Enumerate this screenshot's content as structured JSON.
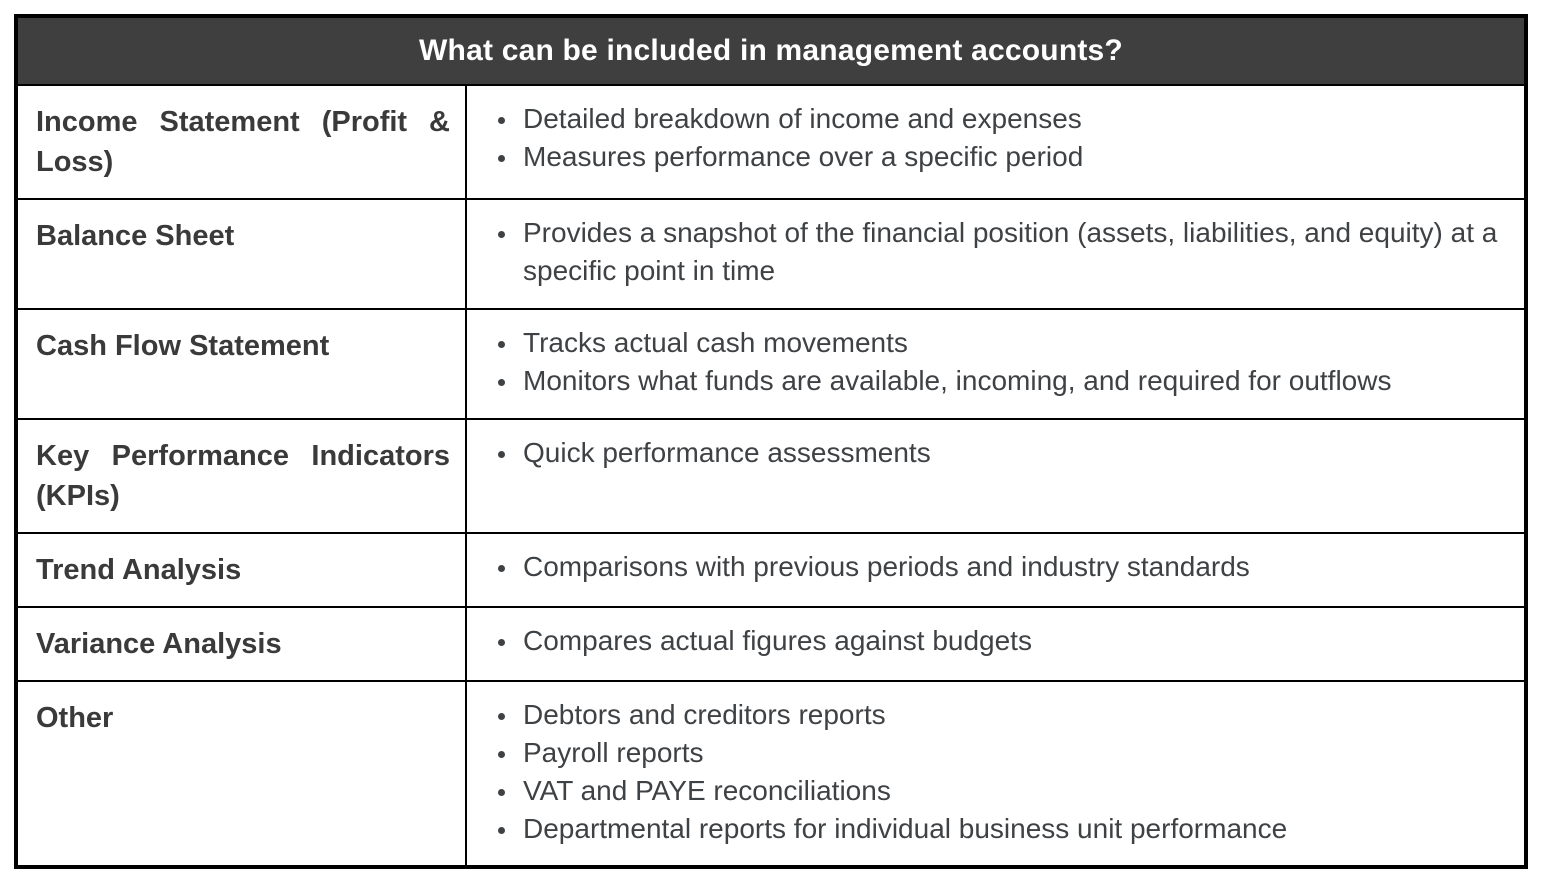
{
  "table": {
    "title": "What can be included in management accounts?",
    "colors": {
      "header_bg": "#3F3F3F",
      "header_text": "#FFFFFF",
      "term_text": "#3A3A3A",
      "body_text": "#3F4245",
      "border": "#000000"
    },
    "rows": [
      {
        "term": "Income Statement (Profit & Loss)",
        "bullets": [
          "Detailed breakdown of income and expenses",
          "Measures performance over a specific period"
        ]
      },
      {
        "term": "Balance Sheet",
        "bullets": [
          "Provides a snapshot of the financial position (assets, liabilities, and equity) at a specific point in time"
        ]
      },
      {
        "term": "Cash Flow Statement",
        "bullets": [
          "Tracks actual cash movements",
          "Monitors what funds are available, incoming, and required for outflows"
        ]
      },
      {
        "term": "Key Performance Indicators (KPIs)",
        "bullets": [
          "Quick performance assessments"
        ]
      },
      {
        "term": "Trend Analysis",
        "bullets": [
          "Comparisons with previous periods and industry standards"
        ]
      },
      {
        "term": "Variance Analysis",
        "bullets": [
          "Compares actual figures against budgets"
        ]
      },
      {
        "term": "Other",
        "bullets": [
          "Debtors and creditors reports",
          "Payroll reports",
          "VAT and PAYE reconciliations",
          "Departmental reports for individual business unit performance"
        ]
      }
    ]
  }
}
